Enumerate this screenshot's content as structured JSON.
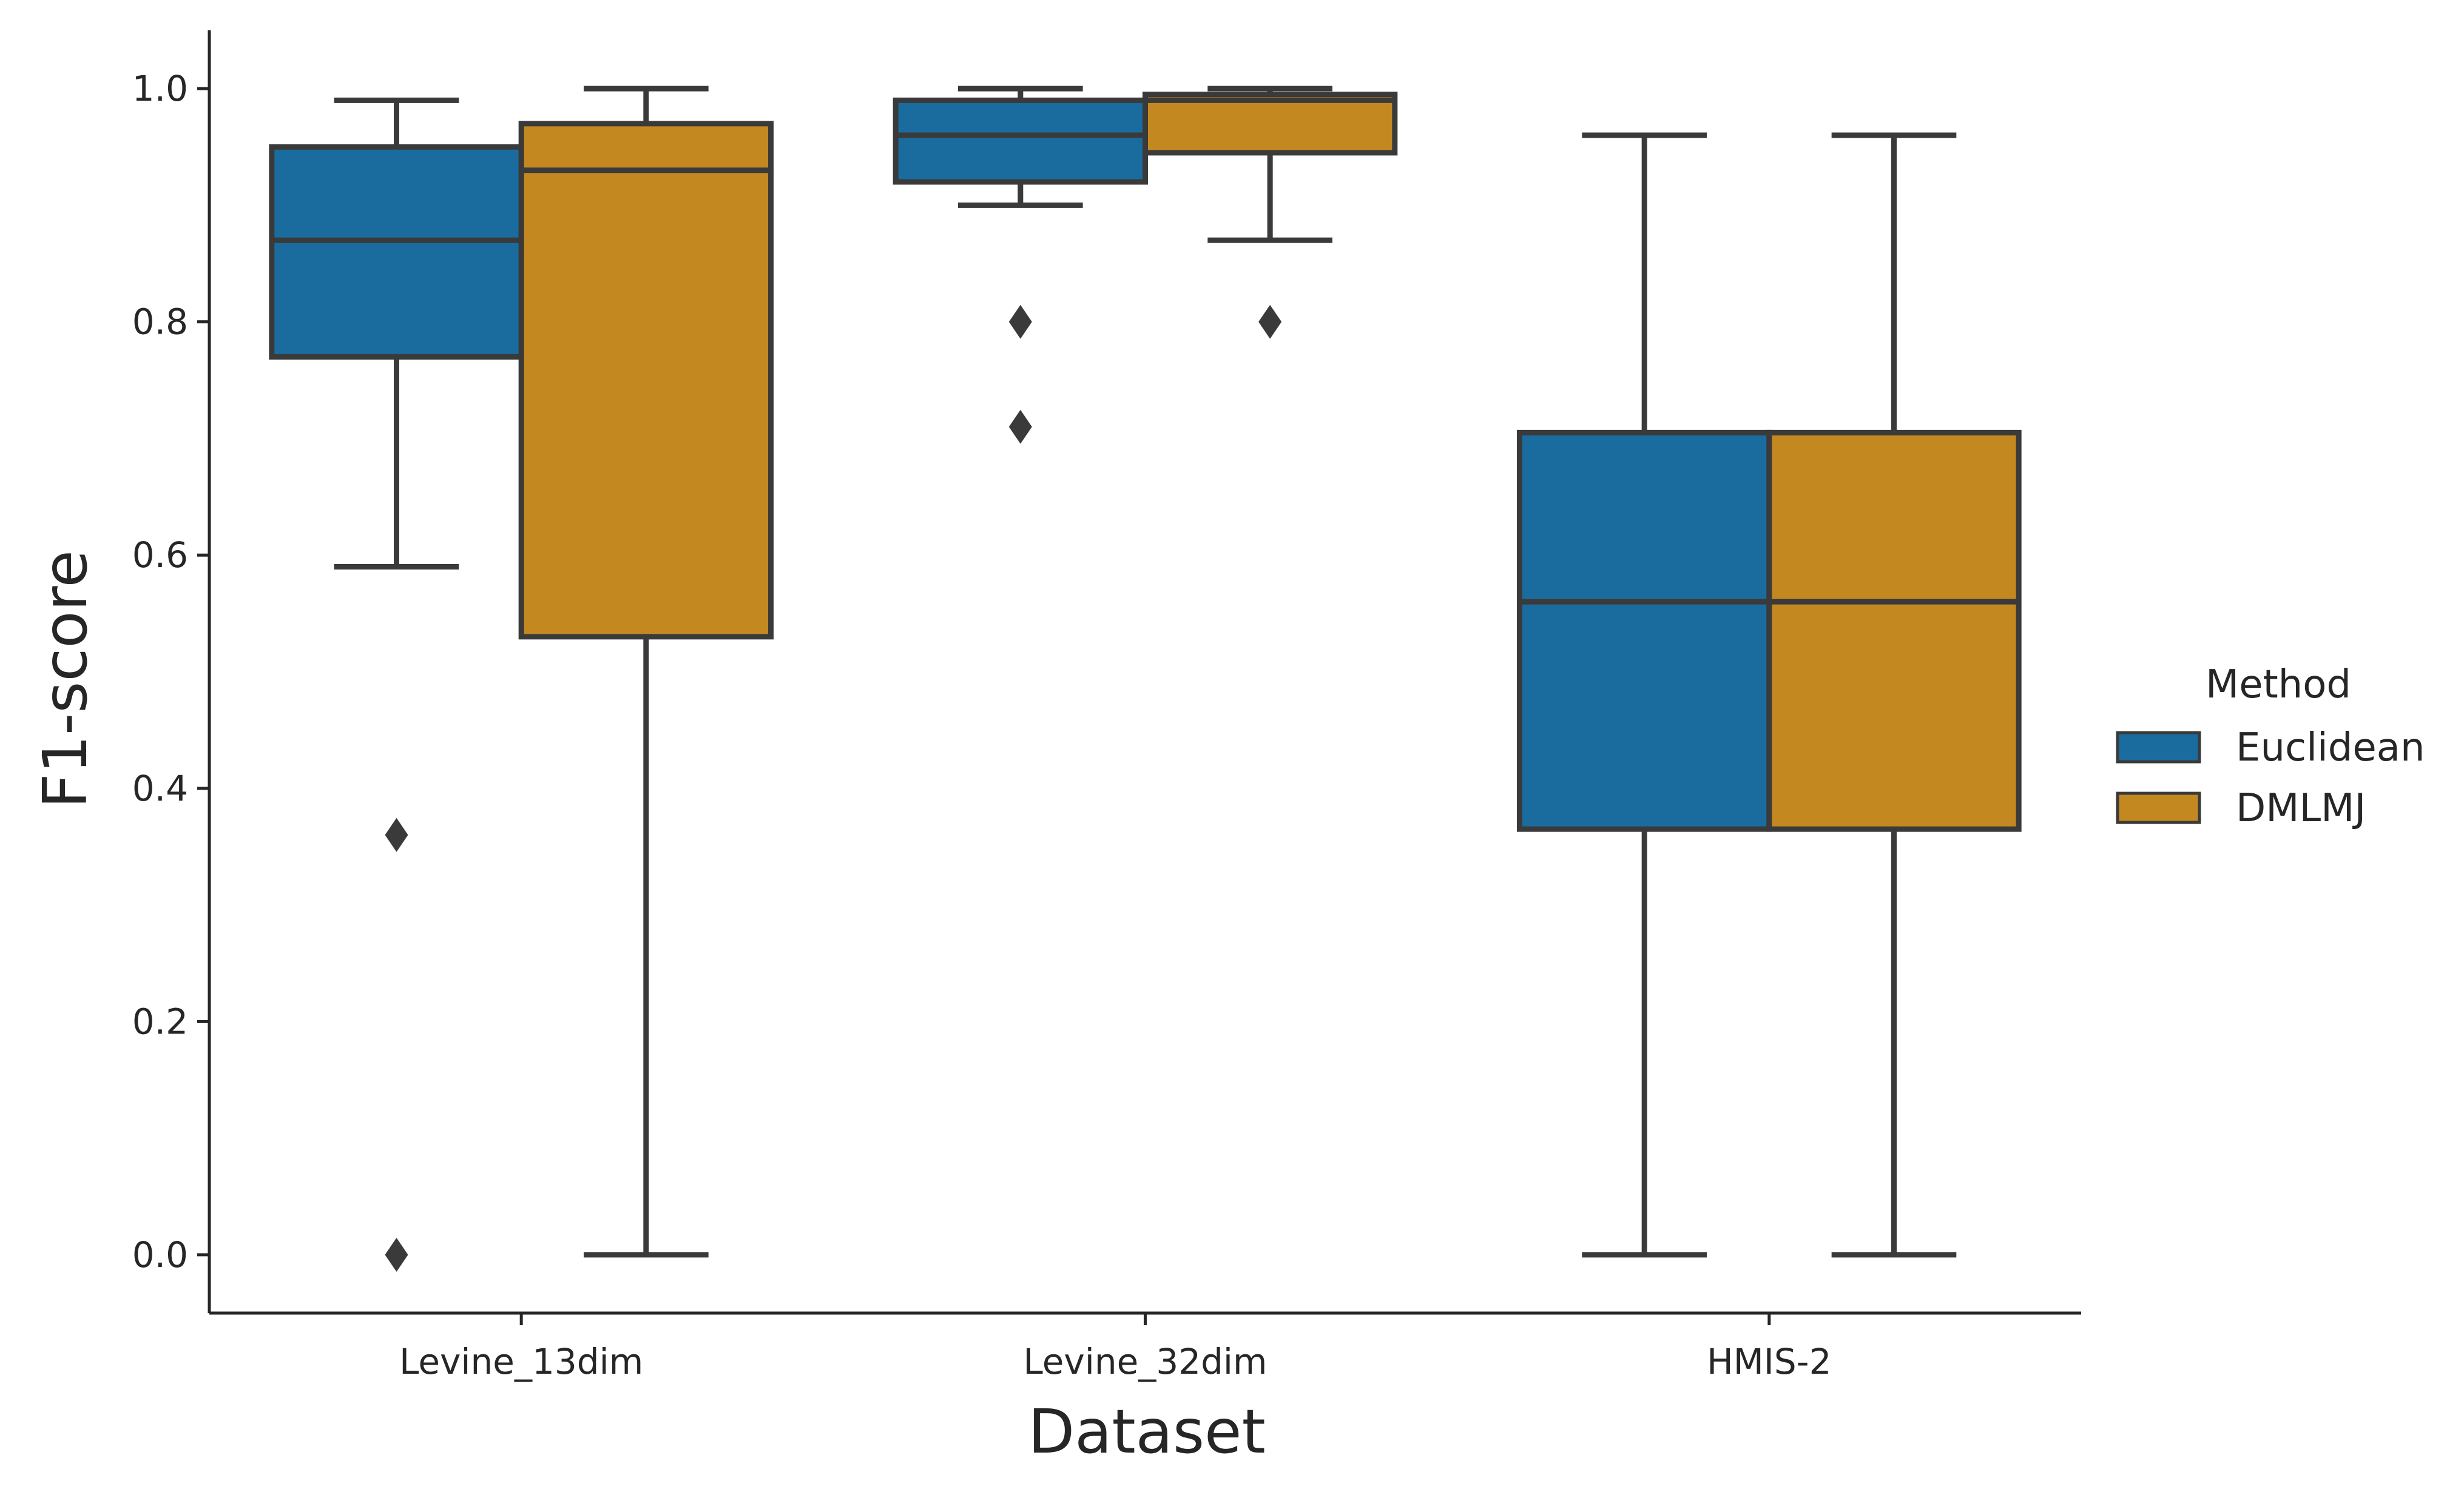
{
  "chart_data": {
    "type": "box",
    "xlabel": "Dataset",
    "ylabel": "F1-score",
    "ylim": [
      -0.05,
      1.05
    ],
    "yticks": [
      "0.0",
      "0.2",
      "0.4",
      "0.6",
      "0.8",
      "1.0"
    ],
    "categories": [
      "Levine_13dim",
      "Levine_32dim",
      "HMIS-2"
    ],
    "legend": {
      "title": "Method",
      "placement": "right"
    },
    "series": [
      {
        "name": "Euclidean",
        "color": "#1a6c9e",
        "boxes": [
          {
            "whislo": 0.59,
            "q1": 0.77,
            "med": 0.87,
            "q3": 0.95,
            "whishi": 0.99,
            "fliers": [
              0.36,
              0.0
            ]
          },
          {
            "whislo": 0.9,
            "q1": 0.92,
            "med": 0.96,
            "q3": 0.99,
            "whishi": 1.0,
            "fliers": [
              0.8,
              0.71
            ]
          },
          {
            "whislo": 0.0,
            "q1": 0.365,
            "med": 0.56,
            "q3": 0.705,
            "whishi": 0.96,
            "fliers": []
          }
        ]
      },
      {
        "name": "DMLMJ",
        "color": "#c38820",
        "boxes": [
          {
            "whislo": 0.0,
            "q1": 0.53,
            "med": 0.93,
            "q3": 0.97,
            "whishi": 1.0,
            "fliers": []
          },
          {
            "whislo": 0.87,
            "q1": 0.945,
            "med": 0.99,
            "q3": 0.995,
            "whishi": 1.0,
            "fliers": [
              0.8
            ]
          },
          {
            "whislo": 0.0,
            "q1": 0.365,
            "med": 0.56,
            "q3": 0.705,
            "whishi": 0.96,
            "fliers": []
          }
        ]
      }
    ]
  }
}
